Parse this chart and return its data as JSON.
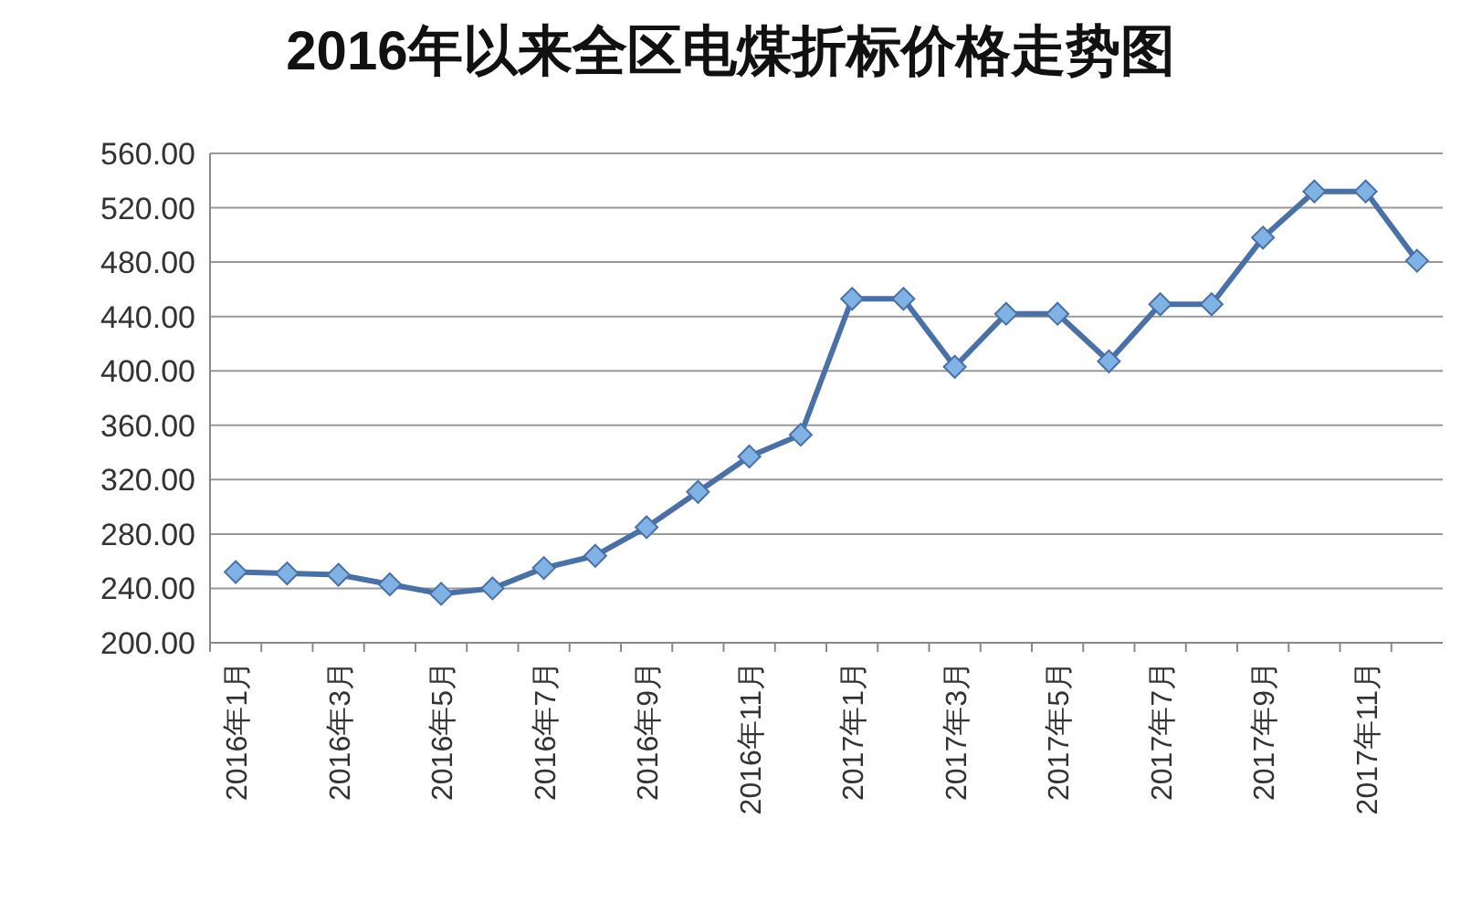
{
  "chart_data": {
    "type": "line",
    "title": "2016年以来全区电煤折标价格走势图",
    "categories": [
      "2016年1月",
      null,
      "2016年3月",
      null,
      "2016年5月",
      null,
      "2016年7月",
      null,
      "2016年9月",
      null,
      "2016年11月",
      null,
      "2017年1月",
      null,
      "2017年3月",
      null,
      "2017年5月",
      null,
      "2017年7月",
      null,
      "2017年9月",
      null,
      "2017年11月",
      null
    ],
    "series": [
      {
        "color": "#4a70a8",
        "values": [
          252,
          251,
          250,
          243,
          236,
          240,
          255,
          264,
          285,
          311,
          337,
          353,
          453,
          453,
          403,
          442,
          442,
          407,
          449,
          449,
          498,
          532,
          532,
          481
        ]
      }
    ],
    "marker": "diamond",
    "grid": "y",
    "ylim": [
      200,
      560
    ],
    "yticks": [
      {
        "value": 200,
        "label": "200.00"
      },
      {
        "value": 240,
        "label": "240.00"
      },
      {
        "value": 280,
        "label": "280.00"
      },
      {
        "value": 320,
        "label": "320.00"
      },
      {
        "value": 360,
        "label": "360.00"
      },
      {
        "value": 400,
        "label": "400.00"
      },
      {
        "value": 440,
        "label": "440.00"
      },
      {
        "value": 480,
        "label": "480.00"
      },
      {
        "value": 520,
        "label": "520.00"
      },
      {
        "value": 560,
        "label": "560.00"
      }
    ]
  }
}
